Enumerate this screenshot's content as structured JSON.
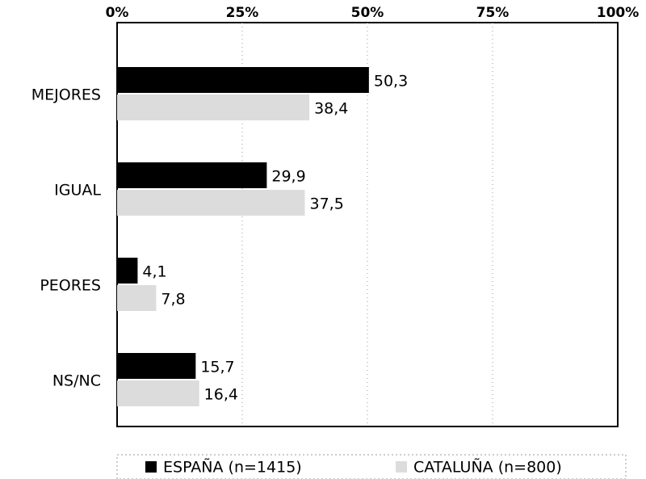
{
  "chart_data": {
    "type": "hbar",
    "categories": [
      "MEJORES",
      "IGUAL",
      "PEORES",
      "NS/NC"
    ],
    "series": [
      {
        "name": "ESPAÑA (n=1415)",
        "color": "#000000",
        "values": [
          50.3,
          29.9,
          4.1,
          15.7
        ],
        "value_labels": [
          "50,3",
          "29,9",
          "4,1",
          "15,7"
        ]
      },
      {
        "name": "CATALUÑA (n=800)",
        "color": "#dcdcdc",
        "values": [
          38.4,
          37.5,
          7.8,
          16.4
        ],
        "value_labels": [
          "38,4",
          "37,5",
          "7,8",
          "16,4"
        ]
      }
    ],
    "xlim": [
      0,
      100
    ],
    "xticks": [
      {
        "value": 0,
        "label": "0%"
      },
      {
        "value": 25,
        "label": "25%"
      },
      {
        "value": 50,
        "label": "50%"
      },
      {
        "value": 75,
        "label": "75%"
      },
      {
        "value": 100,
        "label": "100%"
      }
    ],
    "grid": true,
    "legend": "bottom"
  }
}
